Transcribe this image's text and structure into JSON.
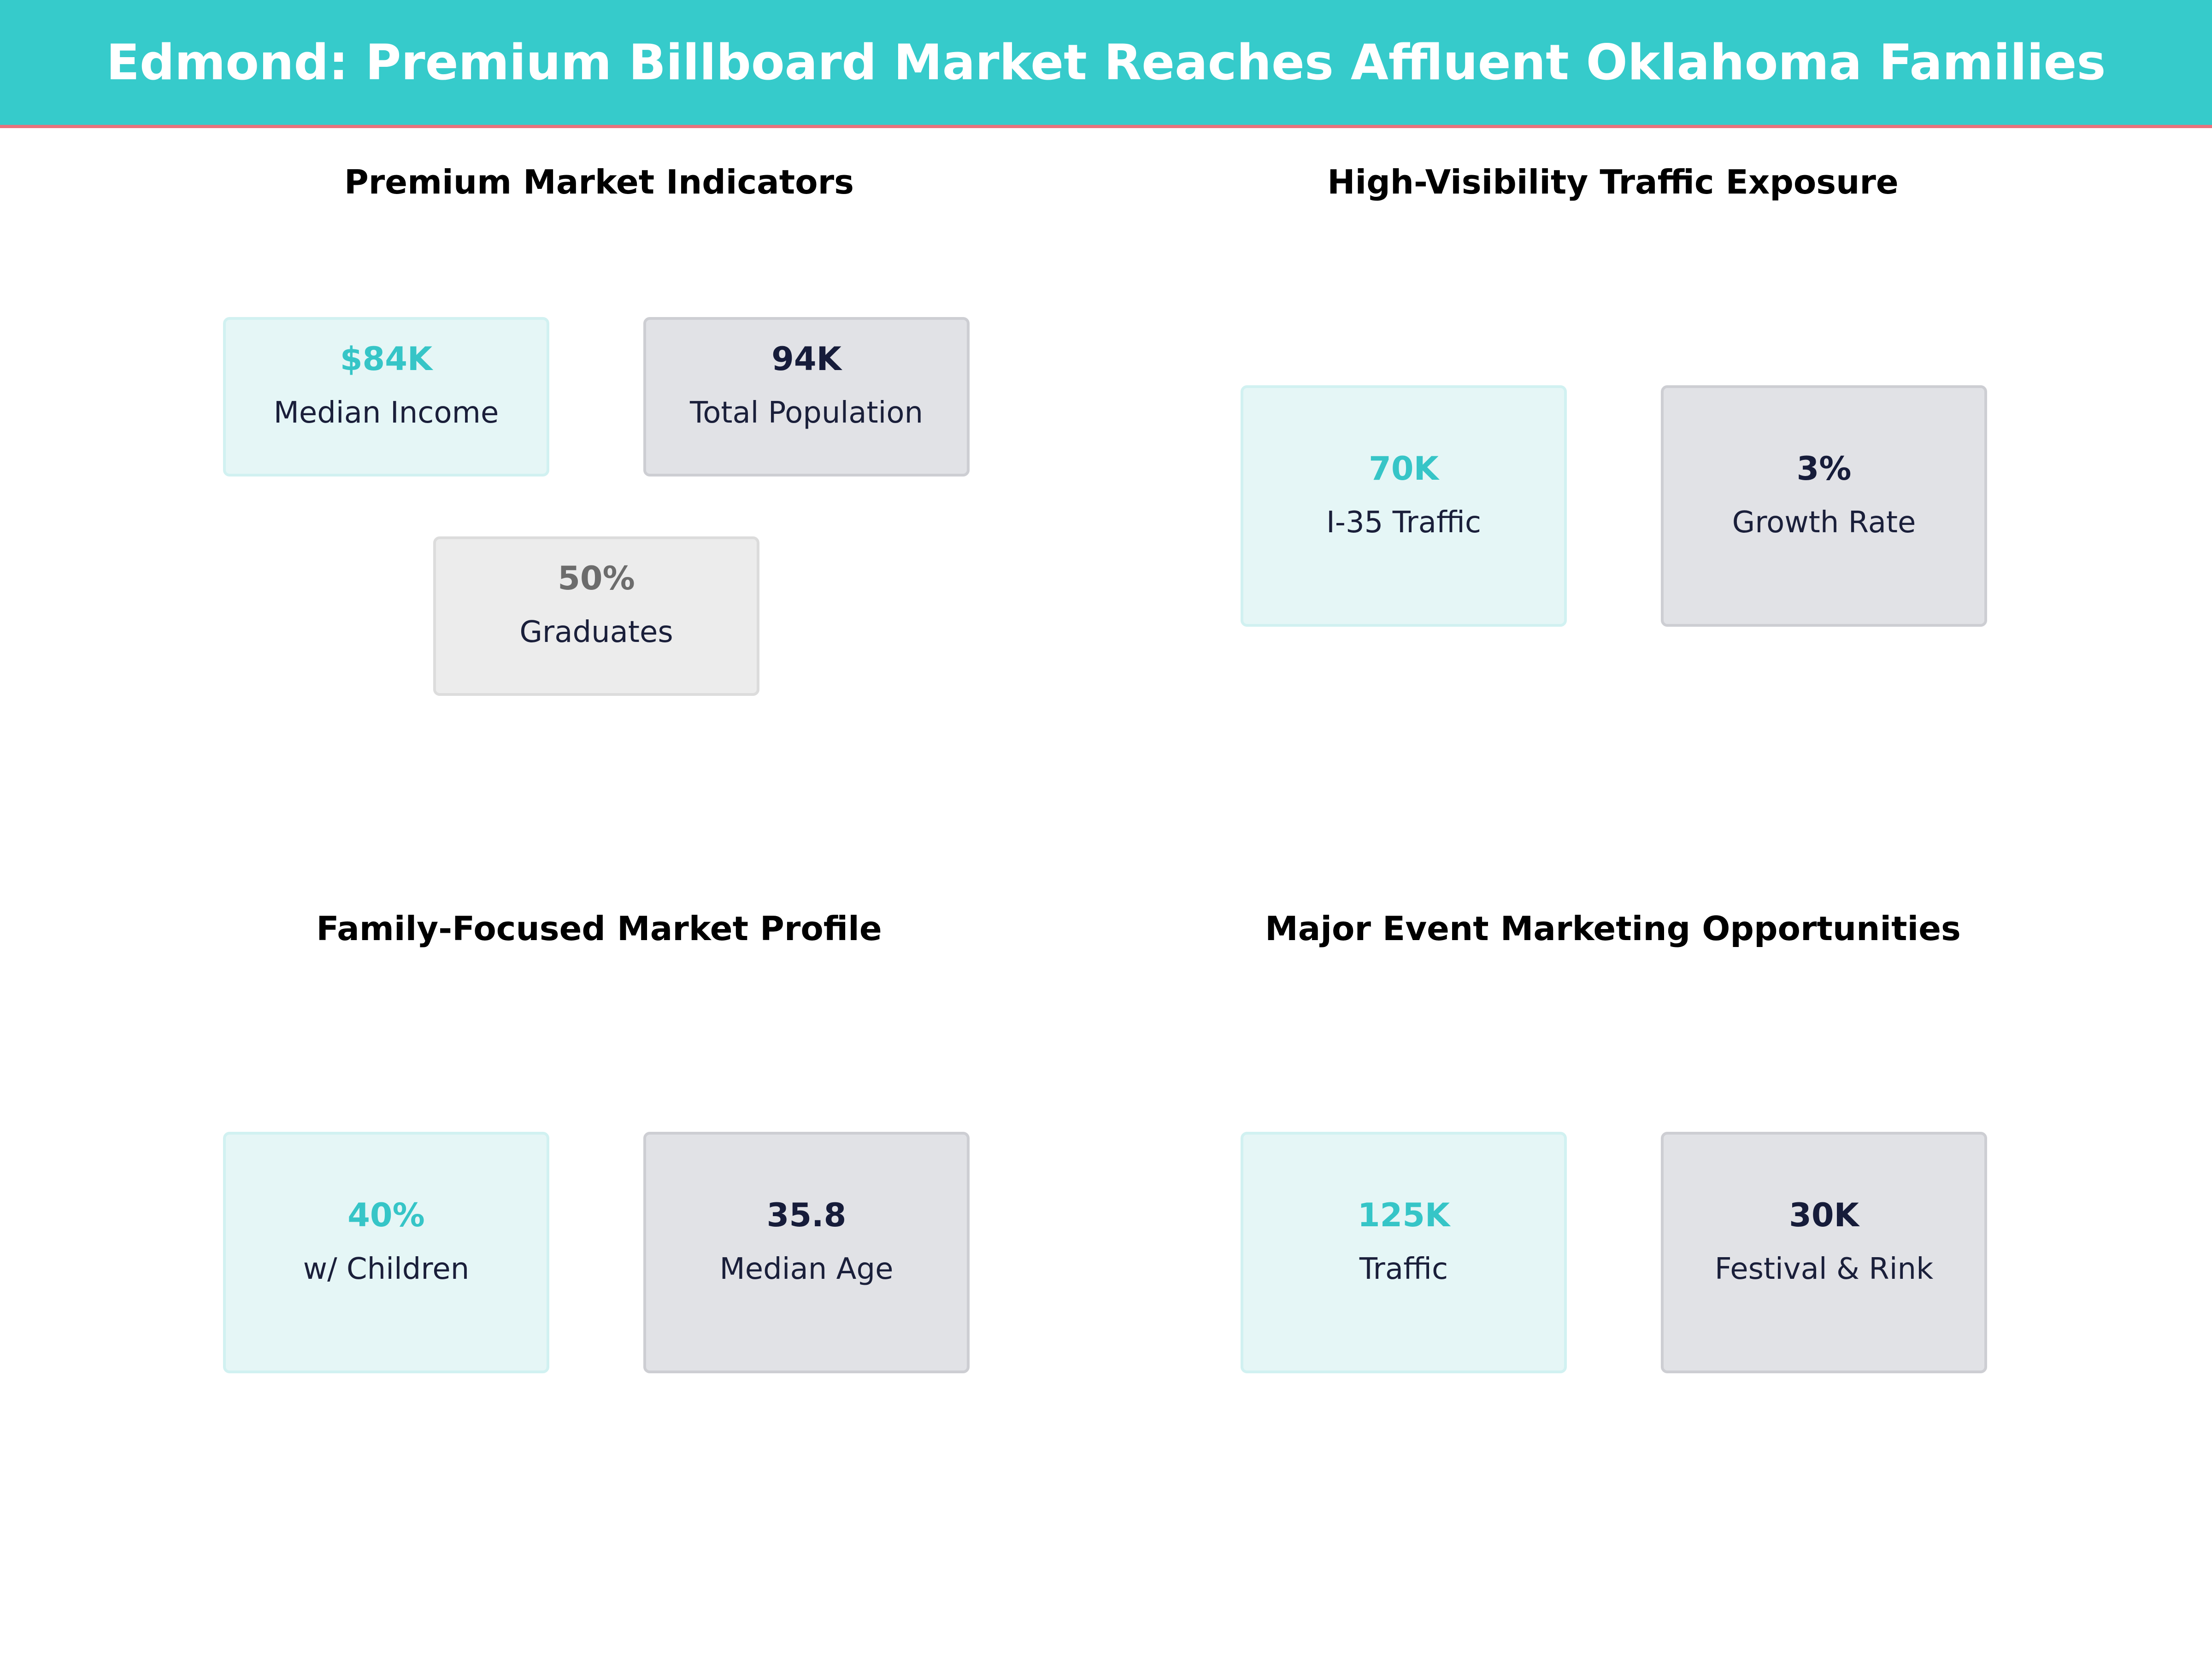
{
  "header": {
    "title": "Edmond: Premium Billboard Market Reaches Affluent Oklahoma Families"
  },
  "colors": {
    "header_bg": "#36cbcb",
    "header_accent": "#e8737c",
    "teal": "#36c5c7",
    "navy": "#161c3a",
    "grey": "#6c6c6c"
  },
  "panels": {
    "market": {
      "title": "Premium Market Indicators",
      "cards": [
        {
          "value": "$84K",
          "label": "Median Income"
        },
        {
          "value": "94K",
          "label": "Total Population"
        },
        {
          "value": "50%",
          "label": "Graduates"
        }
      ]
    },
    "traffic": {
      "title": "High-Visibility Traffic Exposure",
      "cards": [
        {
          "value": "70K",
          "label": "I-35 Traffic"
        },
        {
          "value": "3%",
          "label": "Growth Rate"
        }
      ]
    },
    "family": {
      "title": "Family-Focused Market Profile",
      "cards": [
        {
          "value": "40%",
          "label": "w/ Children"
        },
        {
          "value": "35.8",
          "label": "Median Age"
        }
      ]
    },
    "events": {
      "title": "Major Event Marketing Opportunities",
      "cards": [
        {
          "value": "125K",
          "label": "Traffic"
        },
        {
          "value": "30K",
          "label": "Festival & Rink"
        }
      ]
    }
  }
}
